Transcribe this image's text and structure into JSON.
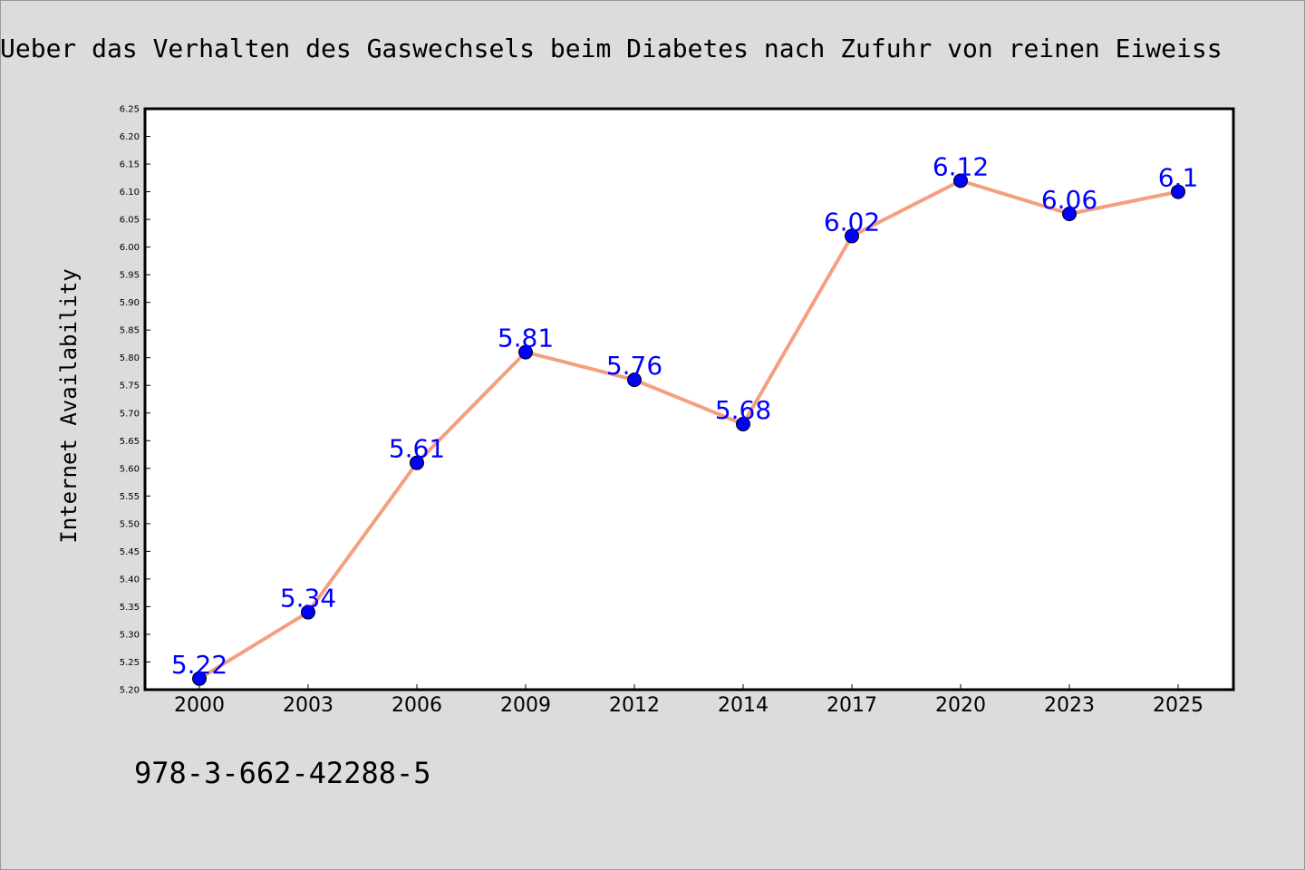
{
  "title": "Ueber das Verhalten des Gaswechsels beim Diabetes nach Zufuhr von reinen Eiweiss",
  "code": "978-3-662-42288-5",
  "chart_data": {
    "type": "line",
    "title": "Ueber das Verhalten des Gaswechsels beim Diabetes nach Zufuhr von reinen Eiweiss",
    "xlabel": "",
    "ylabel": "Internet Availability",
    "categories": [
      "2000",
      "2003",
      "2006",
      "2009",
      "2012",
      "2014",
      "2017",
      "2020",
      "2023",
      "2025"
    ],
    "series": [
      {
        "values": [
          5.22,
          5.34,
          5.61,
          5.81,
          5.76,
          5.68,
          6.02,
          6.12,
          6.06,
          6.1
        ]
      }
    ],
    "data_labels": [
      "5.22",
      "5.34",
      "5.61",
      "5.81",
      "5.76",
      "5.68",
      "6.02",
      "6.12",
      "6.06",
      "6.1"
    ],
    "y_ticks": [
      "5.20",
      "5.25",
      "5.30",
      "5.35",
      "5.40",
      "5.45",
      "5.50",
      "5.55",
      "5.60",
      "5.65",
      "5.70",
      "5.75",
      "5.80",
      "5.85",
      "5.90",
      "5.95",
      "6.00",
      "6.05",
      "6.10",
      "6.15",
      "6.20",
      "6.25"
    ],
    "ylim": [
      5.2,
      6.25
    ],
    "grid": false,
    "line_color": "#f4a07f",
    "marker_color": "#0000ff",
    "label_color": "#0000ff"
  }
}
